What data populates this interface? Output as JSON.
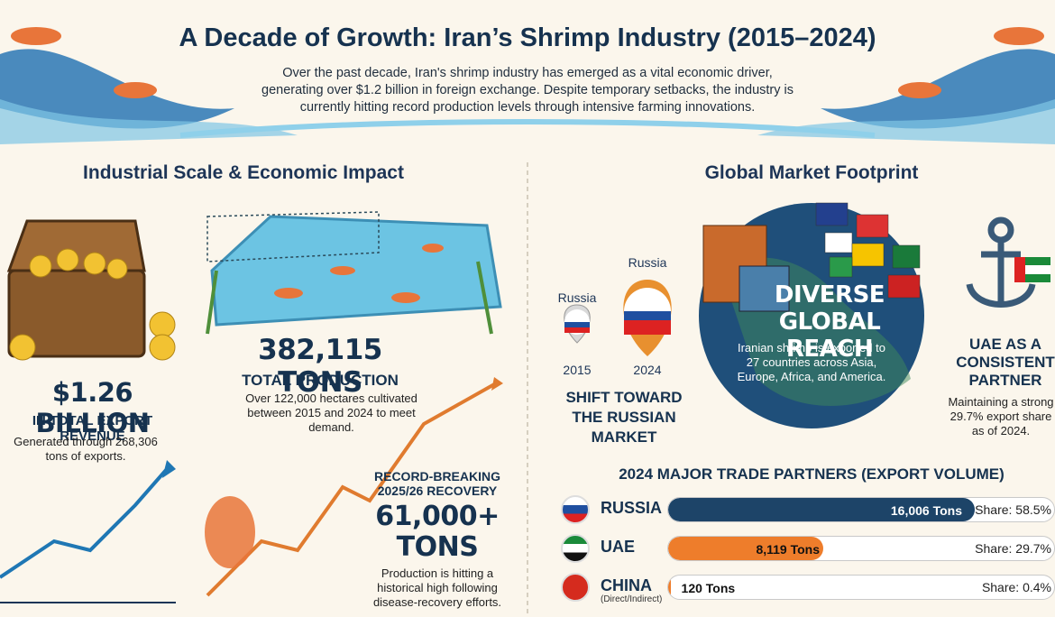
{
  "header": {
    "title": "A Decade of Growth: Iran’s Shrimp Industry (2015–2024)",
    "description": "Over the past decade, Iran's shrimp industry has emerged as a vital economic driver, generating over $1.2 billion in foreign exchange. Despite temporary setbacks, the industry is currently hitting record production levels through intensive farming innovations."
  },
  "left": {
    "heading": "Industrial Scale & Economic Impact",
    "revenue": {
      "value": "$1.26 BILLION",
      "label": "IN TOTAL EXPORT REVENUE",
      "note": "Generated through 268,306 tons of exports."
    },
    "production": {
      "value": "382,115 TONS",
      "label": "TOTAL PRODUCTION",
      "note": "Over 122,000 hectares cultivated between 2015 and 2024 to meet demand."
    },
    "recovery": {
      "label": "RECORD-BREAKING 2025/26 RECOVERY",
      "value": "61,000+ TONS",
      "note": "Production is hitting a historical high following disease-recovery efforts."
    }
  },
  "right": {
    "heading": "Global Market Footprint",
    "shift": {
      "pins": [
        {
          "country": "Russia",
          "year": "2015"
        },
        {
          "country": "Russia",
          "year": "2024"
        }
      ],
      "label": "SHIFT TOWARD THE RUSSIAN MARKET"
    },
    "reach": {
      "title": "DIVERSE GLOBAL REACH",
      "note": "Iranian shrimp is exported to 27 countries across Asia, Europe, Africa, and America."
    },
    "uae": {
      "title": "UAE AS A CONSISTENT PARTNER",
      "note": "Maintaining a strong 29.7% export share as of 2024."
    },
    "trade": {
      "title": "2024 MAJOR TRADE PARTNERS (EXPORT VOLUME)",
      "partners": [
        {
          "name": "RUSSIA",
          "volume": 16006,
          "volume_label": "16,006 Tons",
          "share": "Share: 58.5%",
          "color": "#1d4468"
        },
        {
          "name": "UAE",
          "volume": 8119,
          "volume_label": "8,119 Tons",
          "share": "Share: 29.7%",
          "color": "#ee7d2b"
        },
        {
          "name": "CHINA",
          "sub": "(Direct/Indirect)",
          "volume": 120,
          "volume_label": "120 Tons",
          "share": "Share: 0.4%",
          "color": "#ee7d2b"
        }
      ]
    }
  }
}
